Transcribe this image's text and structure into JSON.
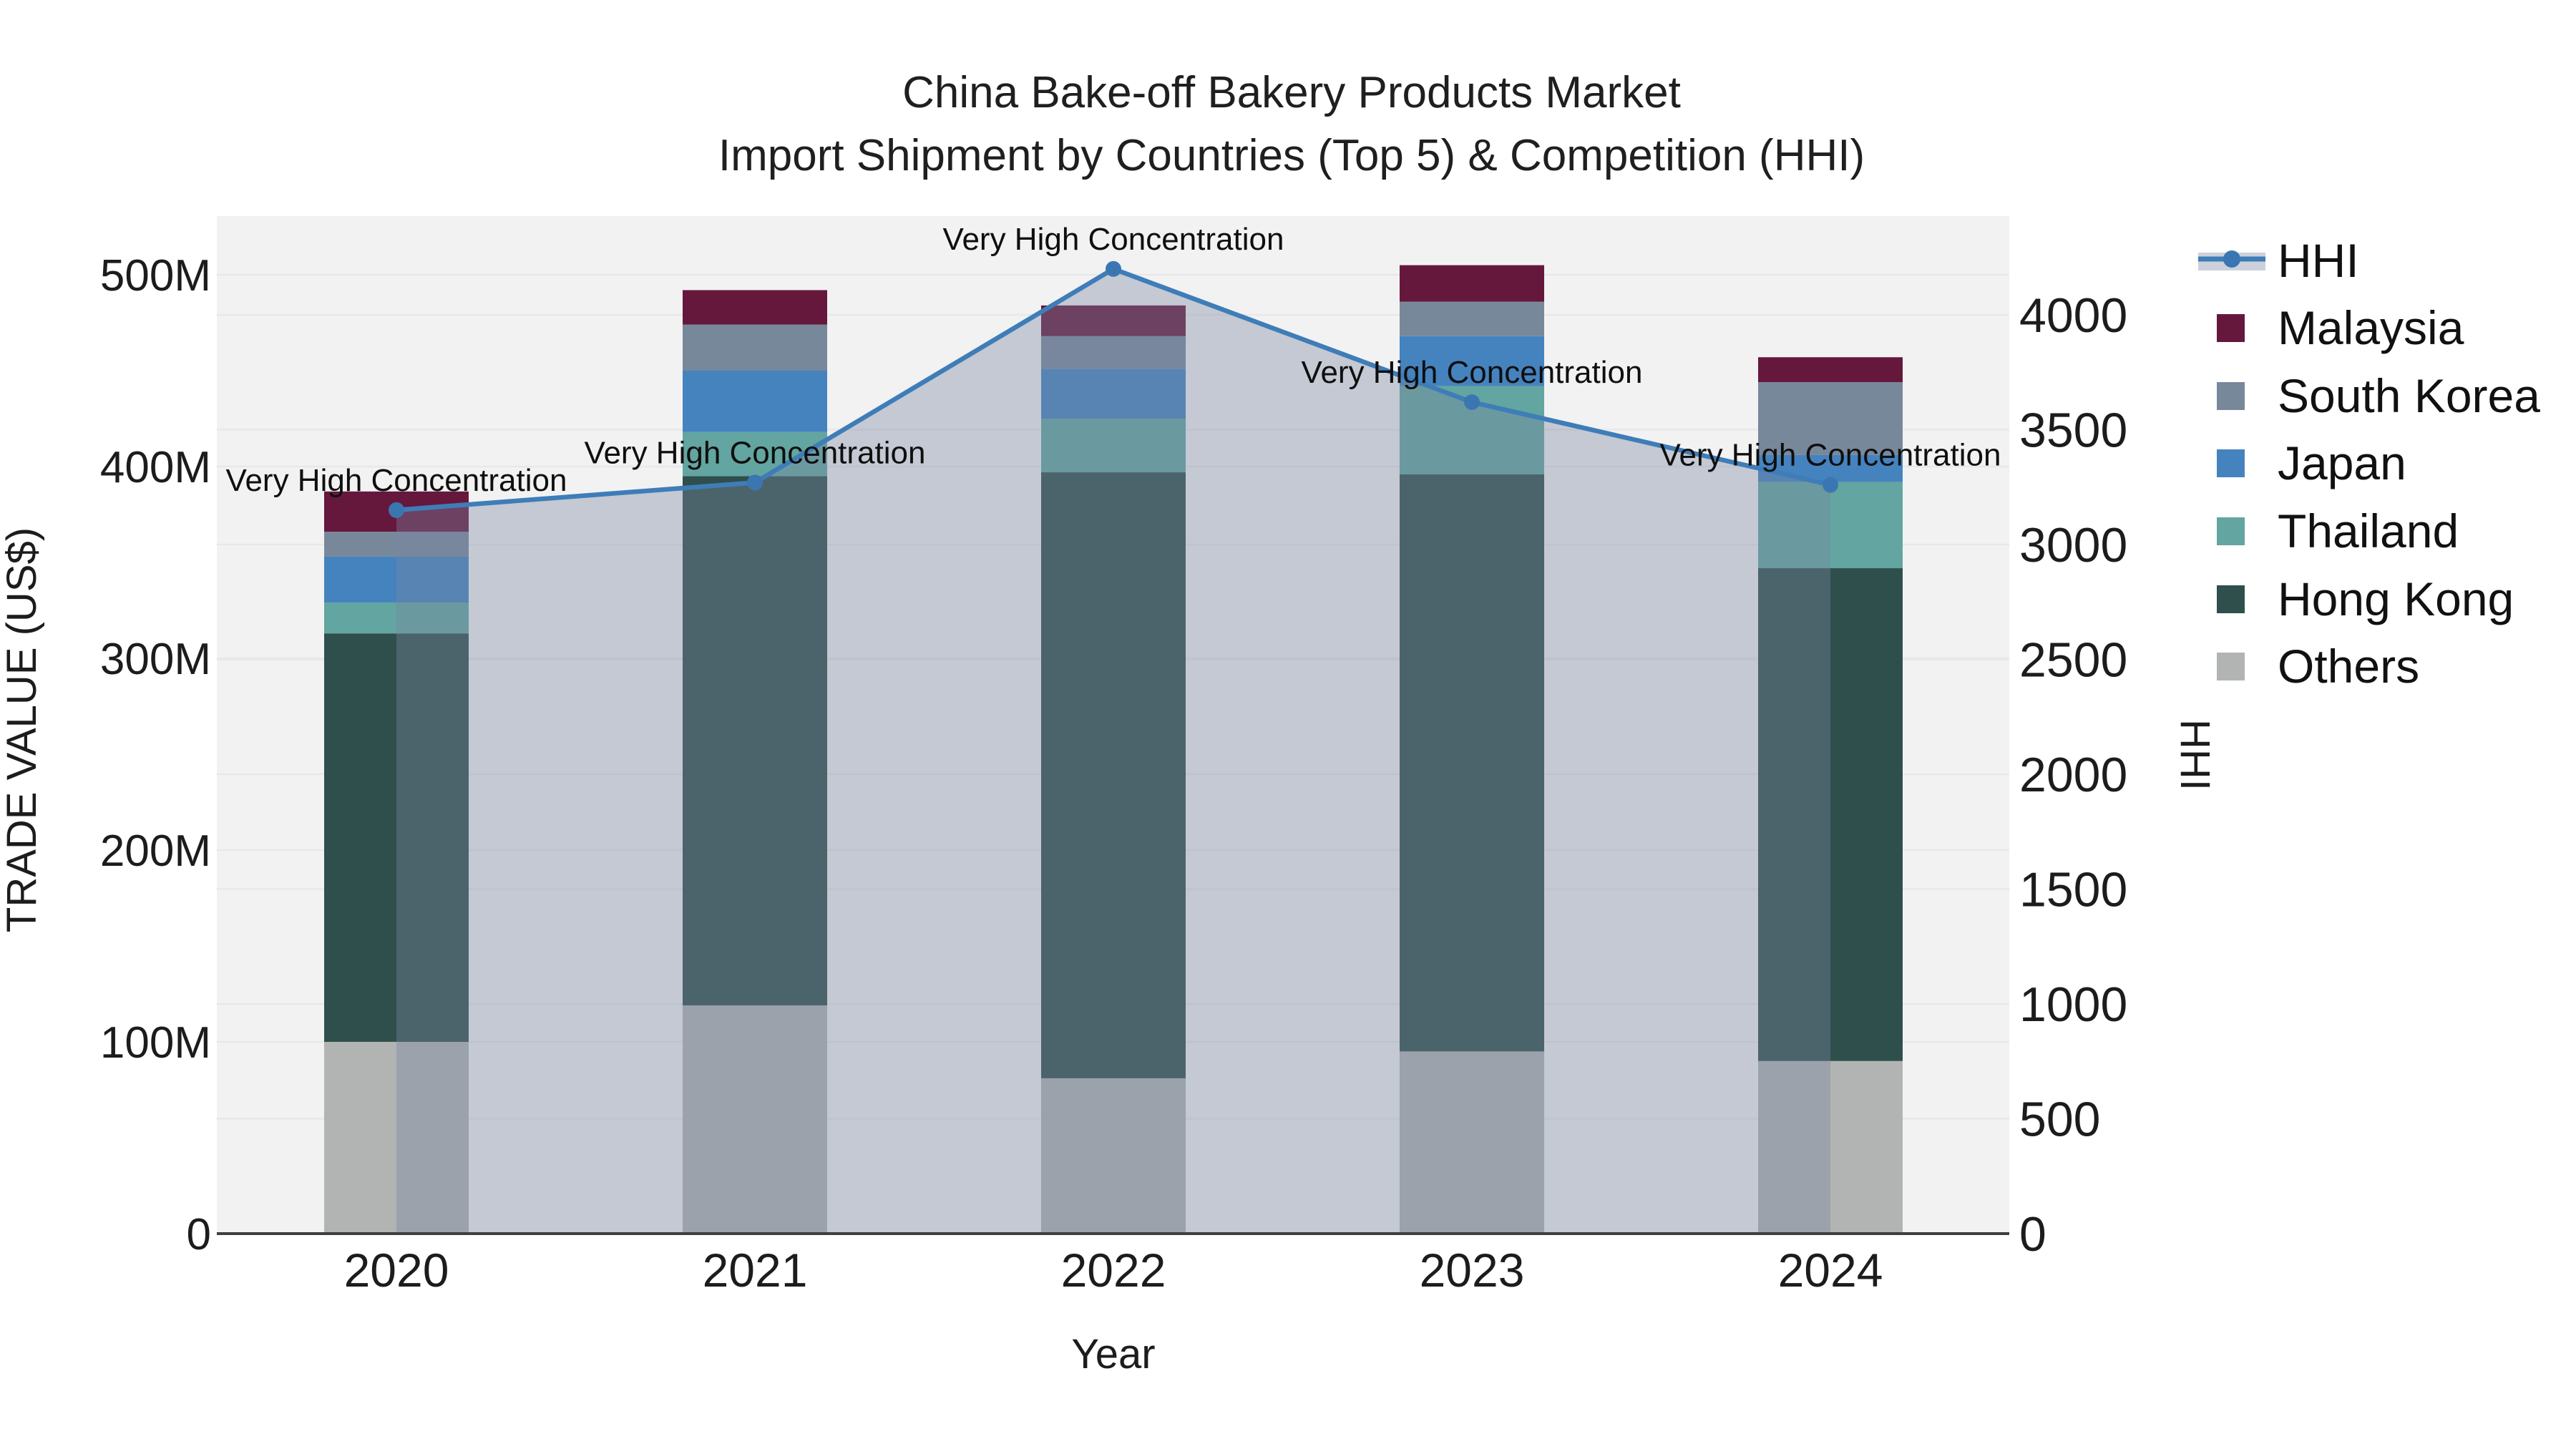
{
  "title": {
    "line1": "China Bake-off Bakery Products Market",
    "line2": "Import Shipment by Countries (Top 5) & Competition (HHI)"
  },
  "axes": {
    "x": {
      "label": "Year",
      "categories": [
        "2020",
        "2021",
        "2022",
        "2023",
        "2024"
      ]
    },
    "y_left": {
      "label": "TRADE VALUE (US$)",
      "tick_labels": [
        "0",
        "100M",
        "200M",
        "300M",
        "400M",
        "500M"
      ],
      "tick_values_M": [
        0,
        100,
        200,
        300,
        400,
        500
      ]
    },
    "y_right": {
      "label": "HHI",
      "tick_labels": [
        "0",
        "500",
        "1000",
        "1500",
        "2000",
        "2500",
        "3000",
        "3500",
        "4000"
      ],
      "tick_values": [
        0,
        500,
        1000,
        1500,
        2000,
        2500,
        3000,
        3500,
        4000
      ]
    }
  },
  "legend": {
    "items": [
      {
        "label": "HHI",
        "key": "hhi",
        "type": "line-marker"
      },
      {
        "label": "Malaysia",
        "key": "malaysia",
        "type": "swatch"
      },
      {
        "label": "South Korea",
        "key": "south-korea",
        "type": "swatch"
      },
      {
        "label": "Japan",
        "key": "japan",
        "type": "swatch"
      },
      {
        "label": "Thailand",
        "key": "thailand",
        "type": "swatch"
      },
      {
        "label": "Hong Kong",
        "key": "hong-kong",
        "type": "swatch"
      },
      {
        "label": "Others",
        "key": "others",
        "type": "swatch"
      }
    ]
  },
  "annotation_text": "Very High Concentration",
  "colors": {
    "malaysia": "#66183C",
    "south_korea": "#78889B",
    "japan": "#4583BF",
    "thailand": "#63A5A0",
    "hong_kong": "#2F4F4C",
    "others": "#B1B4B3",
    "hhi_line": "#3E7DB8",
    "hhi_marker": "#3A77B2",
    "area_fill": "rgba(120,135,160,0.38)",
    "plot_bg": "#F2F2F3",
    "grid": "#E8E8EA",
    "axis_line": "#3F3F3F",
    "text": "#1C1C1C"
  },
  "chart_data": {
    "type": "bar+line",
    "x": [
      "2020",
      "2021",
      "2022",
      "2023",
      "2024"
    ],
    "bar_value_unit": "million US$",
    "stack_order_bottom_to_top": [
      "Others",
      "Hong Kong",
      "Thailand",
      "Japan",
      "South Korea",
      "Malaysia"
    ],
    "series": [
      {
        "name": "Malaysia",
        "values": [
          21,
          18,
          16,
          19,
          13
        ]
      },
      {
        "name": "South Korea",
        "values": [
          13,
          24,
          17,
          18,
          38
        ]
      },
      {
        "name": "Japan",
        "values": [
          24,
          32,
          26,
          26,
          14
        ]
      },
      {
        "name": "Thailand",
        "values": [
          16,
          23,
          28,
          46,
          45
        ]
      },
      {
        "name": "Hong Kong",
        "values": [
          213,
          276,
          316,
          301,
          257
        ]
      },
      {
        "name": "Others",
        "values": [
          100,
          119,
          81,
          95,
          90
        ]
      }
    ],
    "totals_M": [
      387,
      492,
      484,
      505,
      457
    ],
    "line_series": {
      "name": "HHI",
      "values": [
        3150,
        3270,
        4200,
        3620,
        3260
      ],
      "point_annotations": [
        "Very High Concentration",
        "Very High Concentration",
        "Very High Concentration",
        "Very High Concentration",
        "Very High Concentration"
      ],
      "area_under_line": true
    },
    "xlabel": "Year",
    "ylabel_left": "TRADE VALUE (US$)",
    "ylabel_right": "HHI",
    "y_left_range_M": [
      0,
      530
    ],
    "y_right_range": [
      0,
      4430
    ],
    "grid": true,
    "legend_position": "right"
  }
}
